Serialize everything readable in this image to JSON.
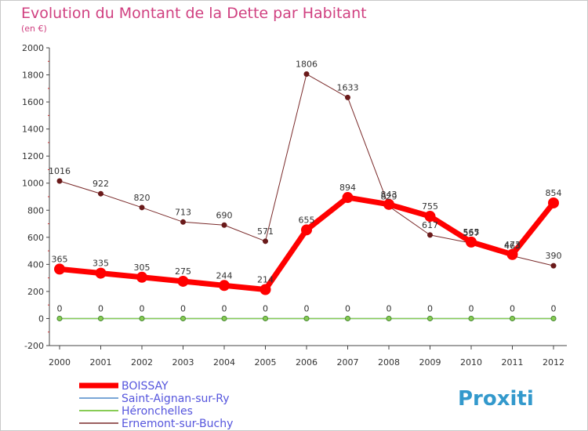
{
  "chart_data": {
    "type": "line",
    "title": "Evolution du Montant de la Dette par Habitant",
    "subtitle": "(en €)",
    "xlabel": "",
    "ylabel": "",
    "categories": [
      "2000",
      "2001",
      "2002",
      "2003",
      "2004",
      "2005",
      "2006",
      "2007",
      "2008",
      "2009",
      "2010",
      "2011",
      "2012"
    ],
    "ylim": [
      -200,
      2000
    ],
    "yticks": [
      -200,
      0,
      200,
      400,
      600,
      800,
      1000,
      1200,
      1400,
      1600,
      1800,
      2000
    ],
    "grid": false,
    "legend_position": "bottom-left",
    "series": [
      {
        "name": "BOISSAY",
        "color": "#ff0000",
        "values": [
          365,
          335,
          305,
          275,
          244,
          214,
          655,
          894,
          843,
          755,
          565,
          473,
          854
        ]
      },
      {
        "name": "Saint-Aignan-sur-Ry",
        "color": "#7aa6d6",
        "values": [
          0,
          0,
          0,
          0,
          0,
          0,
          0,
          0,
          0,
          0,
          0,
          0,
          0
        ]
      },
      {
        "name": "Héronchelles",
        "color": "#88cc55",
        "values": [
          0,
          0,
          0,
          0,
          0,
          0,
          0,
          0,
          0,
          0,
          0,
          0,
          0
        ]
      },
      {
        "name": "Ernemont-sur-Buchy",
        "color": "#7a2a2a",
        "values": [
          1016,
          922,
          820,
          713,
          690,
          571,
          1806,
          1633,
          829,
          617,
          557,
          463,
          390
        ]
      }
    ]
  },
  "logo": {
    "text": "Proxiti"
  }
}
